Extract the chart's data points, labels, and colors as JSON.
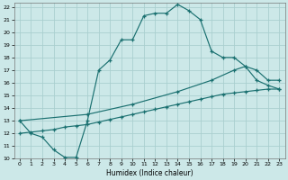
{
  "xlabel": "Humidex (Indice chaleur)",
  "bg_color": "#cce8e8",
  "grid_color": "#aacfcf",
  "line_color": "#1a7070",
  "xlim": [
    -0.5,
    23.5
  ],
  "ylim": [
    10,
    22.3
  ],
  "yticks": [
    10,
    11,
    12,
    13,
    14,
    15,
    16,
    17,
    18,
    19,
    20,
    21,
    22
  ],
  "xticks": [
    0,
    1,
    2,
    3,
    4,
    5,
    6,
    7,
    8,
    9,
    10,
    11,
    12,
    13,
    14,
    15,
    16,
    17,
    18,
    19,
    20,
    21,
    22,
    23
  ],
  "line1_x": [
    0,
    1,
    2,
    3,
    4,
    5,
    6,
    7,
    8,
    9,
    10,
    11,
    12,
    13,
    14,
    15,
    16,
    17,
    18,
    19,
    20,
    21,
    22,
    23
  ],
  "line1_y": [
    13,
    12,
    11.7,
    10.7,
    10.1,
    10.1,
    13,
    17,
    17.8,
    19.4,
    19.4,
    21.3,
    21.5,
    21.5,
    22.2,
    21.7,
    21.0,
    18.5,
    18.0,
    18.0,
    17.3,
    16.2,
    15.8,
    15.5
  ],
  "line2_x": [
    0,
    6,
    10,
    14,
    17,
    19,
    20,
    21,
    22,
    23
  ],
  "line2_y": [
    13.0,
    13.5,
    14.3,
    15.3,
    16.2,
    17.0,
    17.3,
    17.0,
    16.2,
    16.2
  ],
  "line3_x": [
    0,
    1,
    2,
    3,
    4,
    5,
    6,
    7,
    8,
    9,
    10,
    11,
    12,
    13,
    14,
    15,
    16,
    17,
    18,
    19,
    20,
    21,
    22,
    23
  ],
  "line3_y": [
    12.0,
    12.1,
    12.2,
    12.3,
    12.5,
    12.6,
    12.7,
    12.9,
    13.1,
    13.3,
    13.5,
    13.7,
    13.9,
    14.1,
    14.3,
    14.5,
    14.7,
    14.9,
    15.1,
    15.2,
    15.3,
    15.4,
    15.5,
    15.5
  ]
}
